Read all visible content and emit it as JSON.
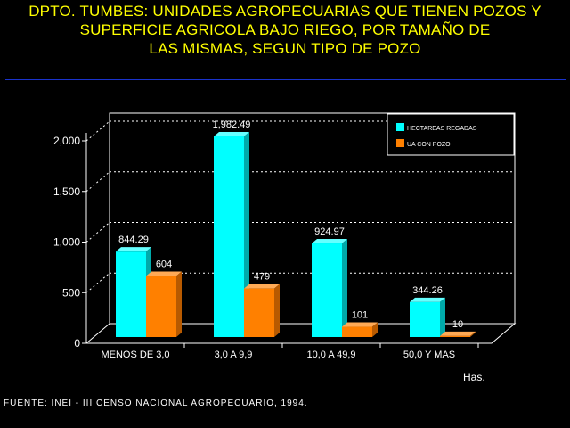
{
  "title": {
    "line1": "DPTO. TUMBES: UNIDADES AGROPECUARIAS QUE TIENEN POZOS Y",
    "line2": "SUPERFICIE AGRICOLA BAJO RIEGO, POR TAMAÑO DE",
    "line3": "LAS MISMAS, SEGUN TIPO DE POZO"
  },
  "source": "FUENTE: INEI - III CENSO NACIONAL AGROPECUARIO, 1994.",
  "unit_label": "Has.",
  "chart_data": {
    "type": "bar",
    "categories": [
      "MENOS DE 3,0",
      "3,0 A 9,9",
      "10,0 A 49,9",
      "50,0 Y MAS"
    ],
    "series": [
      {
        "name": "HECTAREAS REGADAS",
        "values": [
          844.29,
          1982.49,
          924.97,
          344.26
        ],
        "labels": [
          "844.29",
          "1,982.49",
          "924.97",
          "344.26"
        ],
        "color": "#00ffff"
      },
      {
        "name": "UA CON POZO",
        "values": [
          604,
          479,
          101,
          10
        ],
        "labels": [
          "604",
          "479",
          "101",
          "10"
        ],
        "color": "#ff8000"
      }
    ],
    "yticks": [
      "0",
      "500",
      "1,000",
      "1,500",
      "2,000"
    ],
    "ylim": [
      0,
      2000
    ],
    "grid": true,
    "legend_position": "top-right"
  }
}
